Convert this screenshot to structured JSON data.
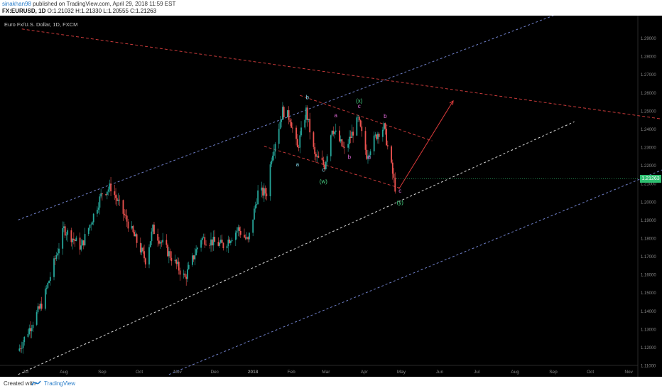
{
  "header": {
    "author": "sinakhan98",
    "published_text": "published on TradingView.com, April 29, 2018 11:59 EST",
    "symbol_line": "FX:EURUSD, 1D",
    "ohlc": "O:1.21032 H:1.21330 L:1.20555 C:1.21263"
  },
  "footer": {
    "created_with": "Created with",
    "brand": "TradingView"
  },
  "chart_data": {
    "type": "candlestick",
    "title": "Euro Fx/U.S. Dollar, 1D, FXCM",
    "y_range": [
      1.11,
      1.3
    ],
    "y_ticks": [
      "1.29000",
      "1.28000",
      "1.27000",
      "1.26000",
      "1.25000",
      "1.24000",
      "1.23000",
      "1.22000",
      "1.21000",
      "1.20000",
      "1.19000",
      "1.18000",
      "1.17000",
      "1.16000",
      "1.15000",
      "1.14000",
      "1.13000",
      "1.12000",
      "1.11000"
    ],
    "x_ticks": [
      "Jul",
      "Aug",
      "Sep",
      "Oct",
      "Nov",
      "Dec",
      "2018",
      "Feb",
      "Mar",
      "Apr",
      "May",
      "Jun",
      "Jul",
      "Aug",
      "Sep",
      "Oct",
      "Nov"
    ],
    "last_price": "1.21263",
    "up_color": "#26a69a",
    "down_color": "#ef5350",
    "background": "#000000",
    "price_path": [
      [
        "2017-06-25",
        1.118
      ],
      [
        "2017-07-15",
        1.145
      ],
      [
        "2017-08-01",
        1.185
      ],
      [
        "2017-08-15",
        1.175
      ],
      [
        "2017-09-01",
        1.205
      ],
      [
        "2017-09-08",
        1.208
      ],
      [
        "2017-10-06",
        1.168
      ],
      [
        "2017-10-12",
        1.185
      ],
      [
        "2017-11-07",
        1.158
      ],
      [
        "2017-11-20",
        1.18
      ],
      [
        "2017-12-08",
        1.176
      ],
      [
        "2017-12-20",
        1.185
      ],
      [
        "2017-12-28",
        1.178
      ],
      [
        "2018-01-05",
        1.205
      ],
      [
        "2018-01-12",
        1.205
      ],
      [
        "2018-01-16",
        1.225
      ],
      [
        "2018-01-25",
        1.25
      ],
      [
        "2018-01-31",
        1.246
      ],
      [
        "2018-02-06",
        1.229
      ],
      [
        "2018-02-13",
        1.25
      ],
      [
        "2018-02-20",
        1.225
      ],
      [
        "2018-02-28",
        1.22
      ],
      [
        "2018-03-06",
        1.241
      ],
      [
        "2018-03-16",
        1.228
      ],
      [
        "2018-03-27",
        1.245
      ],
      [
        "2018-04-03",
        1.226
      ],
      [
        "2018-04-12",
        1.238
      ],
      [
        "2018-04-17",
        1.241
      ],
      [
        "2018-04-26",
        1.208
      ]
    ],
    "wave_labels": [
      {
        "text": "b",
        "date": "2018-02-14",
        "price": 1.2565,
        "color": "#7fd4e6"
      },
      {
        "text": "a",
        "date": "2018-02-06",
        "price": 1.2195,
        "color": "#7fd4e6"
      },
      {
        "text": "c",
        "date": "2018-02-27",
        "price": 1.2165,
        "color": "#7fd4e6"
      },
      {
        "text": "(w)",
        "date": "2018-02-27",
        "price": 1.21,
        "color": "#4cdd8a"
      },
      {
        "text": "(x)",
        "date": "2018-03-28",
        "price": 1.2545,
        "color": "#4cdd8a"
      },
      {
        "text": "c",
        "date": "2018-03-28",
        "price": 1.2515,
        "color": "#e06ad8"
      },
      {
        "text": "a",
        "date": "2018-03-09",
        "price": 1.2465,
        "color": "#e06ad8"
      },
      {
        "text": "b",
        "date": "2018-03-20",
        "price": 1.2235,
        "color": "#e06ad8"
      },
      {
        "text": "a",
        "date": "2018-04-05",
        "price": 1.2235,
        "color": "#e06ad8"
      },
      {
        "text": "b",
        "date": "2018-04-18",
        "price": 1.246,
        "color": "#e06ad8"
      },
      {
        "text": "c",
        "date": "2018-04-30",
        "price": 1.205,
        "color": "#e06ad8"
      },
      {
        "text": "(y)",
        "date": "2018-04-30",
        "price": 1.1985,
        "color": "#4cdd8a"
      }
    ],
    "trendlines": [
      {
        "name": "channel-upper",
        "from": [
          "2017-06-25",
          1.19
        ],
        "to": [
          "2018-09-15",
          1.306
        ],
        "color": "#6f7fc8",
        "dash": "3,3"
      },
      {
        "name": "channel-middle",
        "from": [
          "2017-06-25",
          1.105
        ],
        "to": [
          "2018-09-18",
          1.244
        ],
        "color": "#d8d8d8",
        "dash": "3,3"
      },
      {
        "name": "channel-lower",
        "from": [
          "2017-10-25",
          1.105
        ],
        "to": [
          "2018-11-28",
          1.2175
        ],
        "color": "#6f7fc8",
        "dash": "3,3"
      },
      {
        "name": "resistance",
        "from": [
          "2017-06-28",
          1.295
        ],
        "to": [
          "2018-11-28",
          1.2455
        ],
        "color": "#c83a3a",
        "dash": "4,3"
      },
      {
        "name": "wedge-top",
        "from": [
          "2018-02-08",
          1.2585
        ],
        "to": [
          "2018-05-26",
          1.2335
        ],
        "color": "#c83a3a",
        "dash": "4,3"
      },
      {
        "name": "wedge-bottom",
        "from": [
          "2018-01-10",
          1.2305
        ],
        "to": [
          "2018-04-30",
          1.2075
        ],
        "color": "#c83a3a",
        "dash": "4,3"
      }
    ],
    "projection_arrow": {
      "from": [
        "2018-04-29",
        1.207
      ],
      "to": [
        "2018-06-12",
        1.2555
      ],
      "color": "#d83a3a"
    }
  }
}
